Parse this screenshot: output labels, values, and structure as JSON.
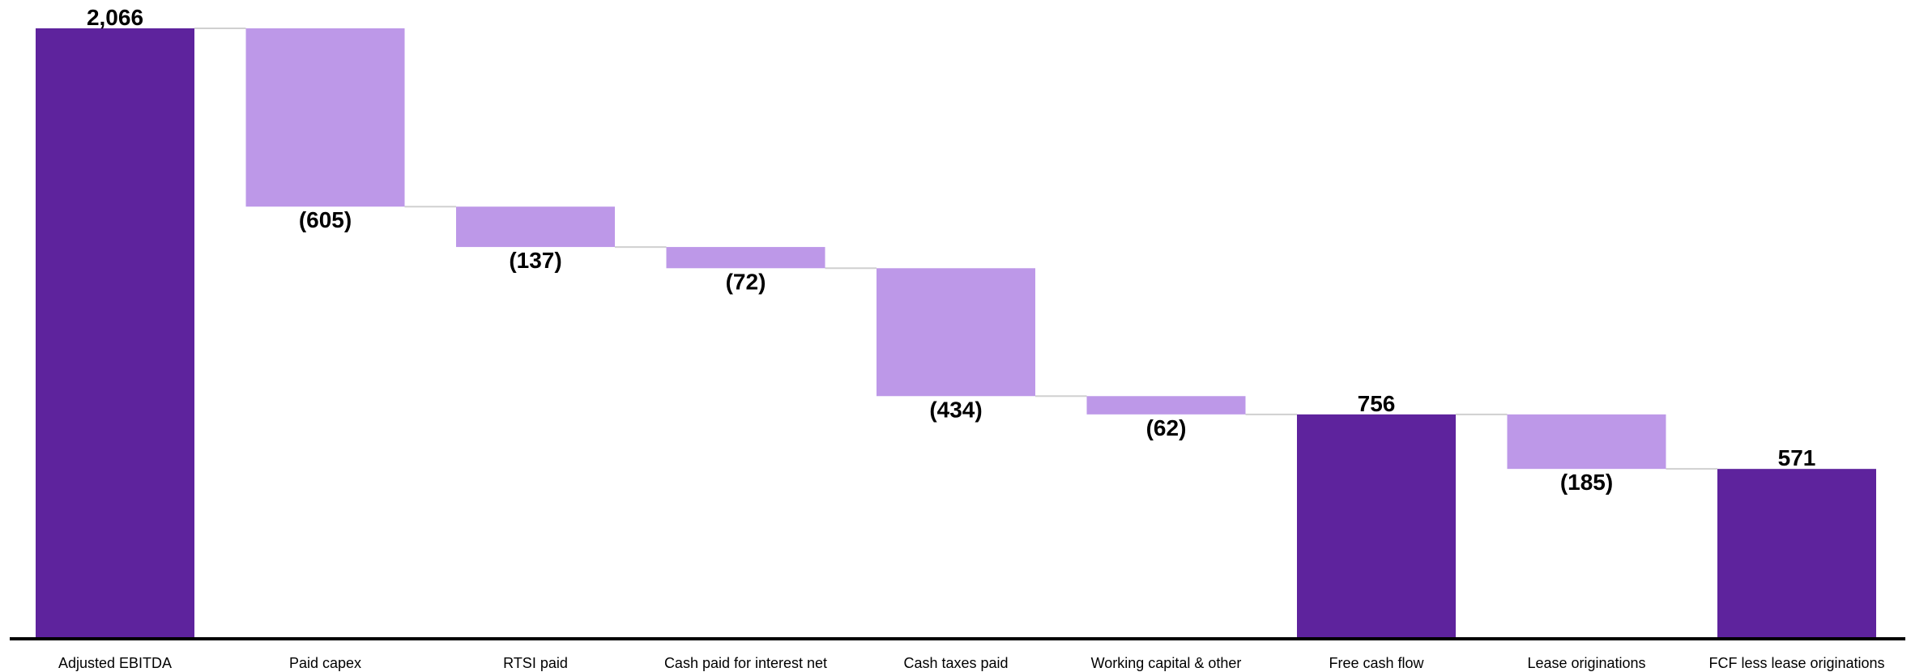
{
  "chart_data": {
    "type": "bar",
    "subtype": "waterfall",
    "title": "",
    "xlabel": "",
    "ylabel": "",
    "ylim": [
      0,
      2080
    ],
    "grid": false,
    "legend": "none",
    "categories": [
      "Adjusted EBITDA",
      "Paid capex",
      "RTSI paid",
      "Cash paid for interest net",
      "Cash taxes paid",
      "Working capital & other",
      "Free cash flow",
      "Lease originations",
      "FCF less lease originations"
    ],
    "values": [
      2066,
      -605,
      -137,
      -72,
      -434,
      -62,
      756,
      -185,
      571
    ],
    "kinds": [
      "total",
      "delta",
      "delta",
      "delta",
      "delta",
      "delta",
      "total",
      "delta",
      "total"
    ],
    "value_labels": [
      "2,066",
      "(605)",
      "(137)",
      "(72)",
      "(434)",
      "(62)",
      "756",
      "(185)",
      "571"
    ],
    "colors": {
      "total": "#5e239d",
      "delta": "#bd98e8",
      "connector": "#d0d0d0",
      "axis": "#000000"
    }
  }
}
